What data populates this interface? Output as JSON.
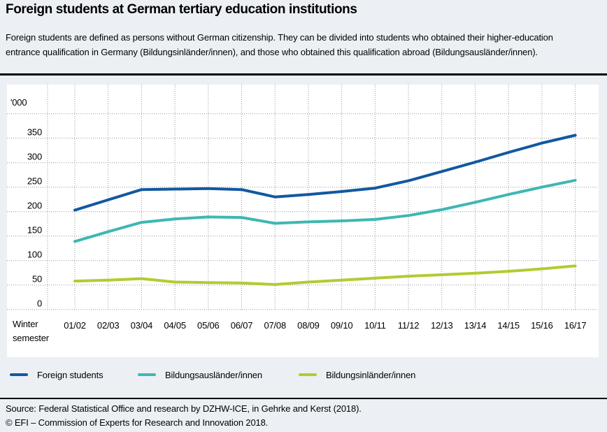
{
  "header": {
    "title": "Foreign students at German tertiary education institutions",
    "subtitle_line1": "Foreign students are defined as persons without German citizenship. They can be divided into students who obtained their higher-education",
    "subtitle_line2": "entrance qualification in Germany (Bildungsinländer/innen), and those who obtained this qualification abroad (Bildungsausländer/innen)."
  },
  "chart_data": {
    "type": "line",
    "title": "Foreign students at German tertiary education institutions",
    "unit_label": "'000",
    "x_axis_label": "Winter semester",
    "categories": [
      "01/02",
      "02/03",
      "03/04",
      "04/05",
      "05/06",
      "06/07",
      "07/08",
      "08/09",
      "09/10",
      "10/11",
      "11/12",
      "12/13",
      "13/14",
      "14/15",
      "15/16",
      "16/17"
    ],
    "series": [
      {
        "name": "Foreign students",
        "color": "#1358a0",
        "values": [
          203,
          224,
          245,
          246,
          247,
          245,
          230,
          235,
          241,
          248,
          263,
          282,
          301,
          321,
          340,
          356
        ]
      },
      {
        "name": "Bildungsausländer/innen",
        "color": "#3fb7b3",
        "values": [
          139,
          159,
          178,
          185,
          189,
          188,
          176,
          179,
          181,
          184,
          192,
          204,
          219,
          235,
          250,
          264
        ]
      },
      {
        "name": "Bildungsinländer/innen",
        "color": "#b4ca32",
        "values": [
          58,
          60,
          63,
          56,
          55,
          54,
          51,
          56,
          60,
          64,
          68,
          71,
          74,
          78,
          83,
          89
        ]
      }
    ],
    "yticks": [
      350,
      300,
      250,
      200,
      150,
      100,
      50,
      0
    ],
    "ylim": [
      0,
      400
    ],
    "grid": "dotted",
    "gridline_values": [
      400,
      350,
      300,
      250,
      200,
      150,
      100,
      50,
      0
    ],
    "legend_position": "bottom"
  },
  "footer": {
    "source": "Source: Federal Statistical Office and research by DZHW-ICE, in Gehrke and Kerst (2018).",
    "copyright": "© EFI – Commission of Experts for Research and Innovation 2018."
  },
  "colors": {
    "page_background": "#ecf0f4",
    "plot_background": "#ffffff",
    "grid_dots": "#8f969c",
    "text": "#000000"
  }
}
